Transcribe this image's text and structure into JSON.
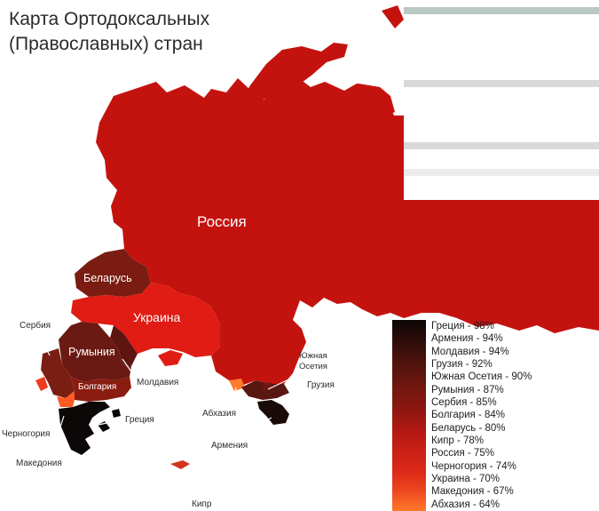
{
  "title": {
    "line1": "Карта Ортодоксальных",
    "line2": "(Православных) стран"
  },
  "colors": {
    "russia": "#c4130f",
    "ukraine": "#e01c14",
    "belarus": "#7a1c12",
    "moldova": "#5e1511",
    "romania": "#6a1a12",
    "serbia": "#7a1e14",
    "bulgaria": "#8a1c10",
    "greece": "#0c0807",
    "armenia": "#1a0b09",
    "georgia": "#5a1711",
    "south_ossetia": "#6e1a12",
    "abkhazia": "#ff7a2b",
    "montenegro": "#f03a1f",
    "macedonia": "#ff5a24",
    "cyprus": "#d4321c",
    "background": "#ffffff"
  },
  "labels": {
    "russia": "Россия",
    "ukraine": "Украина",
    "belarus": "Беларусь",
    "romania": "Румыния",
    "bulgaria": "Болгария",
    "serbia": "Сербия",
    "moldova": "Молдавия",
    "montenegro": "Черногория",
    "greece": "Греция",
    "macedonia": "Македония",
    "abkhazia": "Абхазия",
    "south_ossetia_1": "Южная",
    "south_ossetia_2": "Осетия",
    "georgia": "Грузия",
    "armenia": "Армения",
    "cyprus": "Кипр"
  },
  "legend": [
    {
      "country": "Греция",
      "percent": 98,
      "text": "Греция - 98%"
    },
    {
      "country": "Армения",
      "percent": 94,
      "text": "Армения - 94%"
    },
    {
      "country": "Молдавия",
      "percent": 94,
      "text": "Молдавия - 94%"
    },
    {
      "country": "Грузия",
      "percent": 92,
      "text": "Грузия - 92%"
    },
    {
      "country": "Южная Осетия",
      "percent": 90,
      "text": "Южная Осетия - 90%"
    },
    {
      "country": "Румыния",
      "percent": 87,
      "text": "Румыния - 87%"
    },
    {
      "country": "Сербия",
      "percent": 85,
      "text": "Сербия - 85%"
    },
    {
      "country": "Болгария",
      "percent": 84,
      "text": "Болгария - 84%"
    },
    {
      "country": "Беларусь",
      "percent": 80,
      "text": "Беларусь - 80%"
    },
    {
      "country": "Кипр",
      "percent": 78,
      "text": "Кипр - 78%"
    },
    {
      "country": "Россия",
      "percent": 75,
      "text": "Россия  - 75%"
    },
    {
      "country": "Черногория",
      "percent": 74,
      "text": "Черногория - 74%"
    },
    {
      "country": "Украина",
      "percent": 70,
      "text": "Украина - 70%"
    },
    {
      "country": "Македония",
      "percent": 67,
      "text": "Македония - 67%"
    },
    {
      "country": "Абхазия",
      "percent": 64,
      "text": "Абхазия - 64%"
    }
  ]
}
